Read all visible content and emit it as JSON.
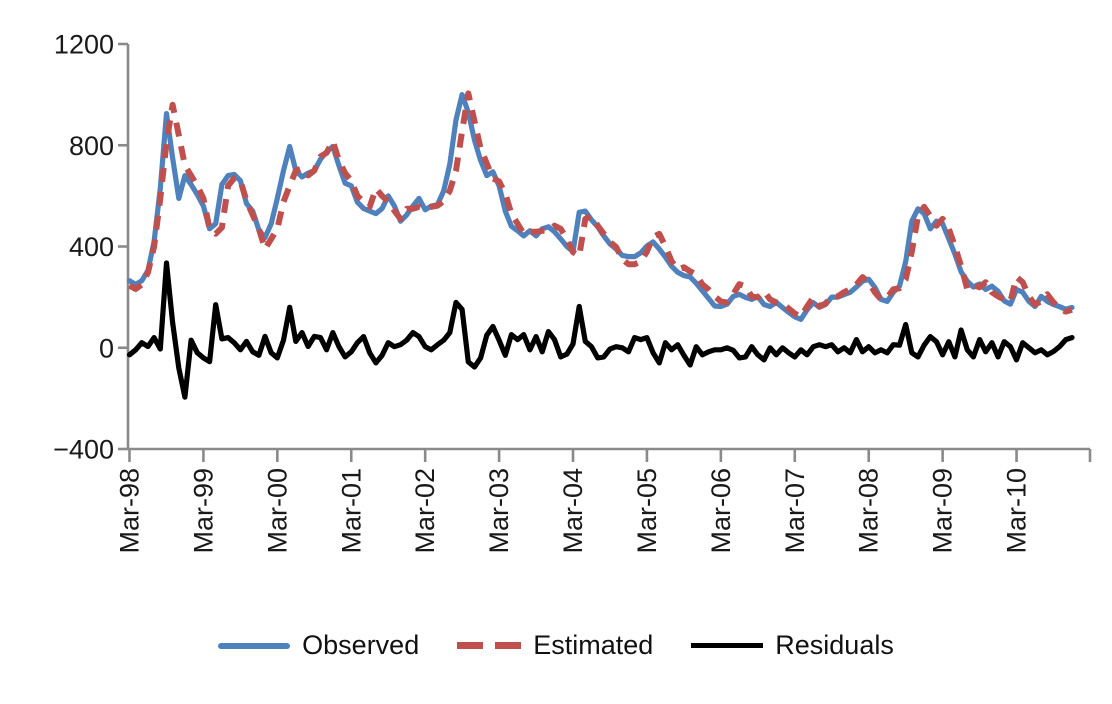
{
  "chart_data": {
    "type": "line",
    "title": "",
    "xlabel": "",
    "ylabel": "",
    "x_frequency": "monthly",
    "x_start": "Mar-98",
    "x_end": "Dec-10",
    "ylim": [
      -400,
      1200
    ],
    "grid": false,
    "legend_position": "bottom",
    "axis_color": "#8a8a8a",
    "tick_text_color": "#191919",
    "y_ticks": [
      {
        "value": 1200,
        "label": "1200"
      },
      {
        "value": 800,
        "label": "800"
      },
      {
        "value": 400,
        "label": "400"
      },
      {
        "value": 0,
        "label": "0"
      },
      {
        "value": -400,
        "label": "−400"
      }
    ],
    "x_ticks": [
      {
        "month_index": 0,
        "label": "Mar-98"
      },
      {
        "month_index": 12,
        "label": "Mar-99"
      },
      {
        "month_index": 24,
        "label": "Mar-00"
      },
      {
        "month_index": 36,
        "label": "Mar-01"
      },
      {
        "month_index": 48,
        "label": "Mar-02"
      },
      {
        "month_index": 60,
        "label": "Mar-03"
      },
      {
        "month_index": 72,
        "label": "Mar-04"
      },
      {
        "month_index": 84,
        "label": "Mar-05"
      },
      {
        "month_index": 96,
        "label": "Mar-06"
      },
      {
        "month_index": 108,
        "label": "Mar-07"
      },
      {
        "month_index": 120,
        "label": "Mar-08"
      },
      {
        "month_index": 132,
        "label": "Mar-09"
      },
      {
        "month_index": 144,
        "label": "Mar-10"
      }
    ],
    "series": [
      {
        "name": "Observed",
        "color": "#4f81bd",
        "style": "solid",
        "values": [
          265,
          250,
          265,
          305,
          420,
          630,
          925,
          750,
          590,
          680,
          645,
          605,
          560,
          470,
          490,
          645,
          680,
          685,
          660,
          570,
          540,
          465,
          435,
          490,
          590,
          700,
          795,
          700,
          675,
          690,
          700,
          745,
          775,
          795,
          720,
          650,
          640,
          575,
          550,
          540,
          530,
          550,
          600,
          560,
          500,
          525,
          560,
          590,
          545,
          560,
          565,
          620,
          725,
          900,
          1000,
          930,
          820,
          740,
          680,
          695,
          640,
          540,
          480,
          462,
          442,
          462,
          442,
          470,
          478,
          458,
          430,
          400,
          380,
          535,
          540,
          505,
          478,
          442,
          410,
          390,
          365,
          360,
          360,
          375,
          402,
          418,
          390,
          358,
          322,
          298,
          285,
          280,
          255,
          225,
          195,
          165,
          163,
          172,
          203,
          211,
          199,
          191,
          203,
          171,
          163,
          179,
          159,
          140,
          122,
          112,
          150,
          178,
          160,
          171,
          200,
          200,
          210,
          219,
          240,
          263,
          271,
          239,
          191,
          183,
          219,
          243,
          340,
          500,
          549,
          530,
          470,
          500,
          490,
          430,
          370,
          300,
          263,
          240,
          252,
          230,
          243,
          223,
          185,
          172,
          230,
          219,
          183,
          163,
          203,
          183,
          171,
          162,
          152,
          159
        ]
      },
      {
        "name": "Estimated",
        "color": "#c0504d",
        "style": "dashed",
        "values": [
          245,
          232,
          250,
          298,
          400,
          590,
          810,
          960,
          840,
          720,
          680,
          640,
          590,
          470,
          450,
          475,
          640,
          670,
          660,
          580,
          525,
          470,
          390,
          430,
          470,
          577,
          640,
          700,
          708,
          681,
          700,
          756,
          770,
          816,
          740,
          690,
          660,
          600,
          577,
          557,
          629,
          600,
          577,
          541,
          509,
          549,
          549,
          557,
          549,
          557,
          561,
          580,
          620,
          700,
          856,
          1005,
          895,
          788,
          728,
          669,
          657,
          609,
          529,
          490,
          450,
          458,
          458,
          462,
          462,
          482,
          470,
          430,
          378,
          362,
          509,
          521,
          482,
          450,
          418,
          398,
          350,
          330,
          330,
          340,
          380,
          438,
          450,
          400,
          342,
          310,
          318,
          302,
          290,
          250,
          231,
          203,
          183,
          179,
          211,
          251,
          243,
          203,
          199,
          223,
          191,
          179,
          175,
          155,
          135,
          123,
          163,
          199,
          163,
          175,
          203,
          203,
          220,
          231,
          250,
          279,
          259,
          219,
          191,
          199,
          231,
          235,
          270,
          380,
          520,
          557,
          521,
          482,
          509,
          470,
          402,
          322,
          231,
          248,
          239,
          259,
          219,
          203,
          191,
          183,
          279,
          259,
          203,
          171,
          183,
          211,
          179,
          155,
          143,
          150
        ]
      },
      {
        "name": "Residuals",
        "color": "#000000",
        "style": "solid",
        "values": [
          -28,
          -8,
          20,
          5,
          40,
          -5,
          335,
          100,
          -80,
          -195,
          30,
          -20,
          -40,
          -55,
          170,
          35,
          40,
          20,
          -8,
          25,
          -16,
          -30,
          45,
          -20,
          -40,
          30,
          160,
          25,
          60,
          5,
          45,
          40,
          -8,
          60,
          5,
          -36,
          -16,
          20,
          44,
          -20,
          -60,
          -30,
          20,
          4,
          12,
          30,
          60,
          44,
          4,
          -8,
          12,
          30,
          60,
          179,
          151,
          -56,
          -76,
          -40,
          50,
          84,
          30,
          -30,
          52,
          32,
          52,
          -8,
          44,
          -16,
          64,
          32,
          -36,
          -25,
          15,
          163,
          25,
          4,
          -40,
          -36,
          -5,
          4,
          0,
          -16,
          40,
          32,
          40,
          -20,
          -60,
          20,
          -8,
          12,
          -30,
          -68,
          4,
          -28,
          -16,
          -8,
          -8,
          0,
          -10,
          -40,
          -36,
          4,
          -28,
          -48,
          0,
          -28,
          0,
          -20,
          -36,
          -8,
          -28,
          4,
          12,
          4,
          12,
          -16,
          0,
          -20,
          32,
          -16,
          4,
          -20,
          -8,
          -20,
          12,
          10,
          92,
          -20,
          -36,
          10,
          44,
          24,
          -28,
          24,
          -36,
          70,
          -8,
          -36,
          32,
          -16,
          20,
          -36,
          24,
          4,
          -48,
          20,
          0,
          -20,
          -8,
          -28,
          -15,
          5,
          32,
          40
        ]
      }
    ]
  },
  "legend": {
    "items": [
      {
        "label": "Observed"
      },
      {
        "label": "Estimated"
      },
      {
        "label": "Residuals"
      }
    ]
  }
}
